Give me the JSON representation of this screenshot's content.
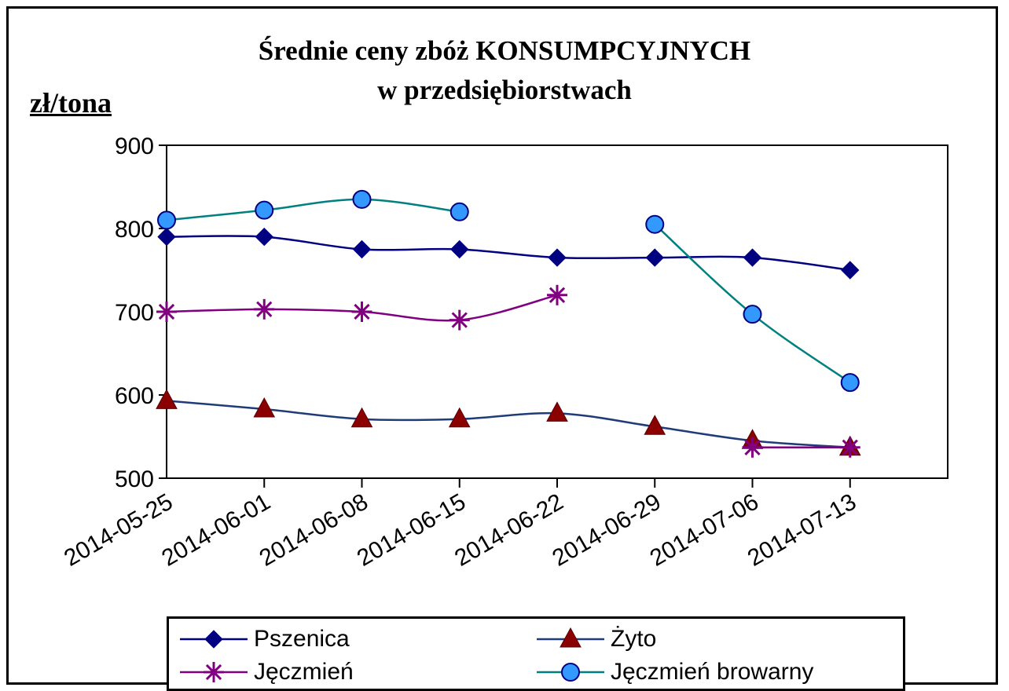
{
  "chart_data": {
    "type": "line",
    "title_line1": "Średnie ceny zbóż KONSUMPCYJNYCH",
    "title_line2": "w przedsiębiorstwach",
    "ylabel": "zł/tona",
    "ylim": [
      500,
      900
    ],
    "yticks": [
      "500",
      "600",
      "700",
      "800",
      "900"
    ],
    "categories": [
      "2014-05-25",
      "2014-06-01",
      "2014-06-08",
      "2014-06-15",
      "2014-06-22",
      "2014-06-29",
      "2014-07-06",
      "2014-07-13"
    ],
    "grid": true,
    "legend_position": "bottom",
    "series": [
      {
        "name": "Pszenica",
        "values": [
          790,
          790,
          775,
          775,
          765,
          765,
          765,
          750
        ],
        "color": "#000080",
        "marker": "diamond"
      },
      {
        "name": "Żyto",
        "values": [
          593,
          583,
          571,
          571,
          578,
          562,
          545,
          537
        ],
        "color": "#1f3c78",
        "marker": "triangle",
        "marker_color": "#8b0000"
      },
      {
        "name": "Jęczmień",
        "values": [
          700,
          703,
          700,
          690,
          720,
          null,
          537,
          537
        ],
        "color": "#800080",
        "marker": "star"
      },
      {
        "name": "Jęczmień browarny",
        "values": [
          810,
          822,
          835,
          820,
          null,
          805,
          697,
          615
        ],
        "color": "#008080",
        "marker": "circle",
        "marker_color": "#3399ff"
      }
    ]
  }
}
